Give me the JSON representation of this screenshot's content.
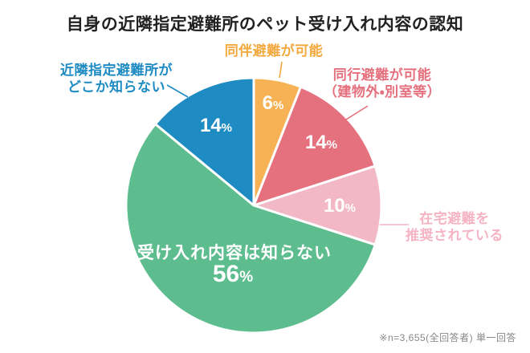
{
  "chart_data": {
    "type": "pie",
    "title": "自身の近隣指定避難所のペット受け入れ内容の認知",
    "note": "※n=3,655(全回答者) 単一回答",
    "unit": "%",
    "start_angle_deg": 0,
    "direction": "clockwise",
    "legend_position": "callout-labels",
    "slices": [
      {
        "label": "同伴避難が可能",
        "label_lines": [
          "同伴避難が可能"
        ],
        "value": 6,
        "color": "#F6B254",
        "label_color": "#F3A93E",
        "pct_text": "6"
      },
      {
        "label": "同行避難が可能（建物外・別室等）",
        "label_lines": [
          "同行避難が可能",
          "（建物外・別室等）"
        ],
        "value": 14,
        "color": "#E5707E",
        "label_color": "#E5707E",
        "pct_text": "14"
      },
      {
        "label": "在宅避難を推奨されている",
        "label_lines": [
          "在宅避難を",
          "推奨されている"
        ],
        "value": 10,
        "color": "#F3B8C6",
        "label_color": "#F5B3C4",
        "pct_text": "10"
      },
      {
        "label": "受け入れ内容は知らない",
        "label_lines": [
          "受け入れ内容は知らない"
        ],
        "value": 56,
        "color": "#5EBD8E",
        "label_color": "#5EBD8E",
        "pct_text": "56"
      },
      {
        "label": "近隣指定避難所がどこか知らない",
        "label_lines": [
          "近隣指定避難所が",
          "どこか知らない"
        ],
        "value": 14,
        "color": "#1E8BC3",
        "label_color": "#1E8BC3",
        "pct_text": "14"
      }
    ],
    "percent_suffix": "%",
    "inside_label_text_color": "#FFFFFF"
  }
}
